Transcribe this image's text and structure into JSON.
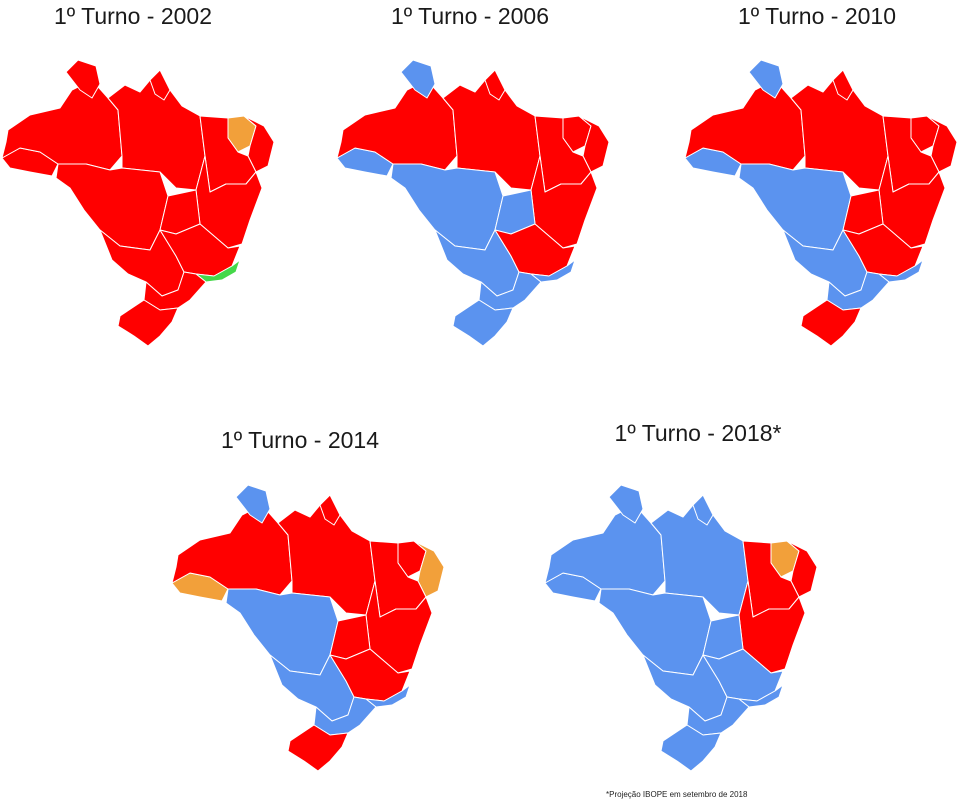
{
  "colors": {
    "red": "#ff0000",
    "blue": "#5b93ef",
    "orange": "#f2a03a",
    "green": "#45d84a",
    "border": "#ffffff"
  },
  "maps": [
    {
      "title": "1º Turno - 2002",
      "regions": {
        "north-west": "red",
        "roraima": "red",
        "para": "red",
        "amapa": "red",
        "central-west": "red",
        "central-south": "red",
        "ceara": "orange",
        "north-east-coast": "red",
        "north-east-interior": "red",
        "bahia": "red",
        "minas-gerais": "red",
        "bahia-inner": "red",
        "rio-de-janeiro": "green",
        "south": "red",
        "rio-grande-do-sul": "red",
        "acre": "red"
      }
    },
    {
      "title": "1º Turno - 2006",
      "regions": {
        "north-west": "red",
        "roraima": "blue",
        "para": "red",
        "amapa": "red",
        "central-west": "blue",
        "central-south": "blue",
        "ceara": "red",
        "north-east-coast": "red",
        "north-east-interior": "red",
        "bahia": "red",
        "minas-gerais": "red",
        "bahia-inner": "blue",
        "rio-de-janeiro": "blue",
        "south": "blue",
        "rio-grande-do-sul": "blue",
        "acre": "blue"
      }
    },
    {
      "title": "1º Turno - 2010",
      "regions": {
        "north-west": "red",
        "roraima": "blue",
        "para": "red",
        "amapa": "red",
        "central-west": "blue",
        "central-south": "blue",
        "ceara": "red",
        "north-east-coast": "red",
        "north-east-interior": "red",
        "bahia": "red",
        "minas-gerais": "red",
        "bahia-inner": "red",
        "rio-de-janeiro": "blue",
        "south": "blue",
        "rio-grande-do-sul": "red",
        "acre": "blue"
      }
    },
    {
      "title": "1º Turno - 2014",
      "regions": {
        "north-west": "red",
        "roraima": "blue",
        "para": "red",
        "amapa": "red",
        "central-west": "blue",
        "central-south": "blue",
        "ceara": "red",
        "north-east-coast": "orange",
        "north-east-interior": "red",
        "bahia": "red",
        "minas-gerais": "red",
        "bahia-inner": "red",
        "rio-de-janeiro": "blue",
        "south": "blue",
        "rio-grande-do-sul": "red",
        "acre": "orange"
      }
    },
    {
      "title": "1º Turno - 2018*",
      "regions": {
        "north-west": "blue",
        "roraima": "blue",
        "para": "blue",
        "amapa": "blue",
        "central-west": "blue",
        "central-south": "blue",
        "ceara": "orange",
        "north-east-coast": "red",
        "north-east-interior": "red",
        "bahia": "red",
        "minas-gerais": "blue",
        "bahia-inner": "blue",
        "rio-de-janeiro": "blue",
        "south": "blue",
        "rio-grande-do-sul": "blue",
        "acre": "blue"
      }
    }
  ],
  "footnote": "*Projeção IBOPE em setembro de 2018"
}
